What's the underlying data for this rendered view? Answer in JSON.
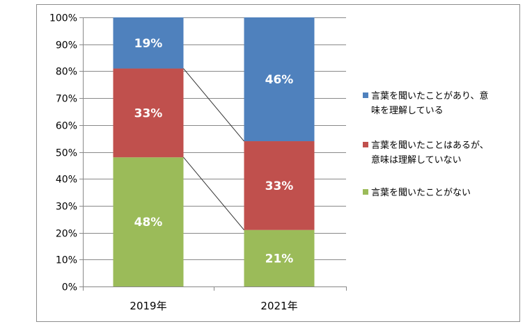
{
  "chart_data": {
    "type": "bar",
    "stacked": true,
    "percent_stacked": true,
    "categories": [
      "2019年",
      "2021年"
    ],
    "series": [
      {
        "name": "言葉を聞いたことがない",
        "label_lines": [
          "言葉を聞いたことがない"
        ],
        "values": [
          48,
          21
        ],
        "labels": [
          "48%",
          "21%"
        ],
        "color": "#9bbb59"
      },
      {
        "name": "言葉を聞いたことはあるが、意味は理解していない",
        "label_lines": [
          "言葉を聞いたことはあるが、",
          "意味は理解していない"
        ],
        "values": [
          33,
          33
        ],
        "labels": [
          "33%",
          "33%"
        ],
        "color": "#c0504d"
      },
      {
        "name": "言葉を聞いたことがあり、意味を理解している",
        "label_lines": [
          "言葉を聞いたことがあり、意",
          "味を理解している"
        ],
        "values": [
          19,
          46
        ],
        "labels": [
          "19%",
          "46%"
        ],
        "color": "#4f81bd"
      }
    ],
    "ylim": [
      0,
      100
    ],
    "yticks": [
      "0%",
      "10%",
      "20%",
      "30%",
      "40%",
      "50%",
      "60%",
      "70%",
      "80%",
      "90%",
      "100%"
    ],
    "gridlines": true,
    "series_lines": true,
    "legend_position": "right"
  }
}
